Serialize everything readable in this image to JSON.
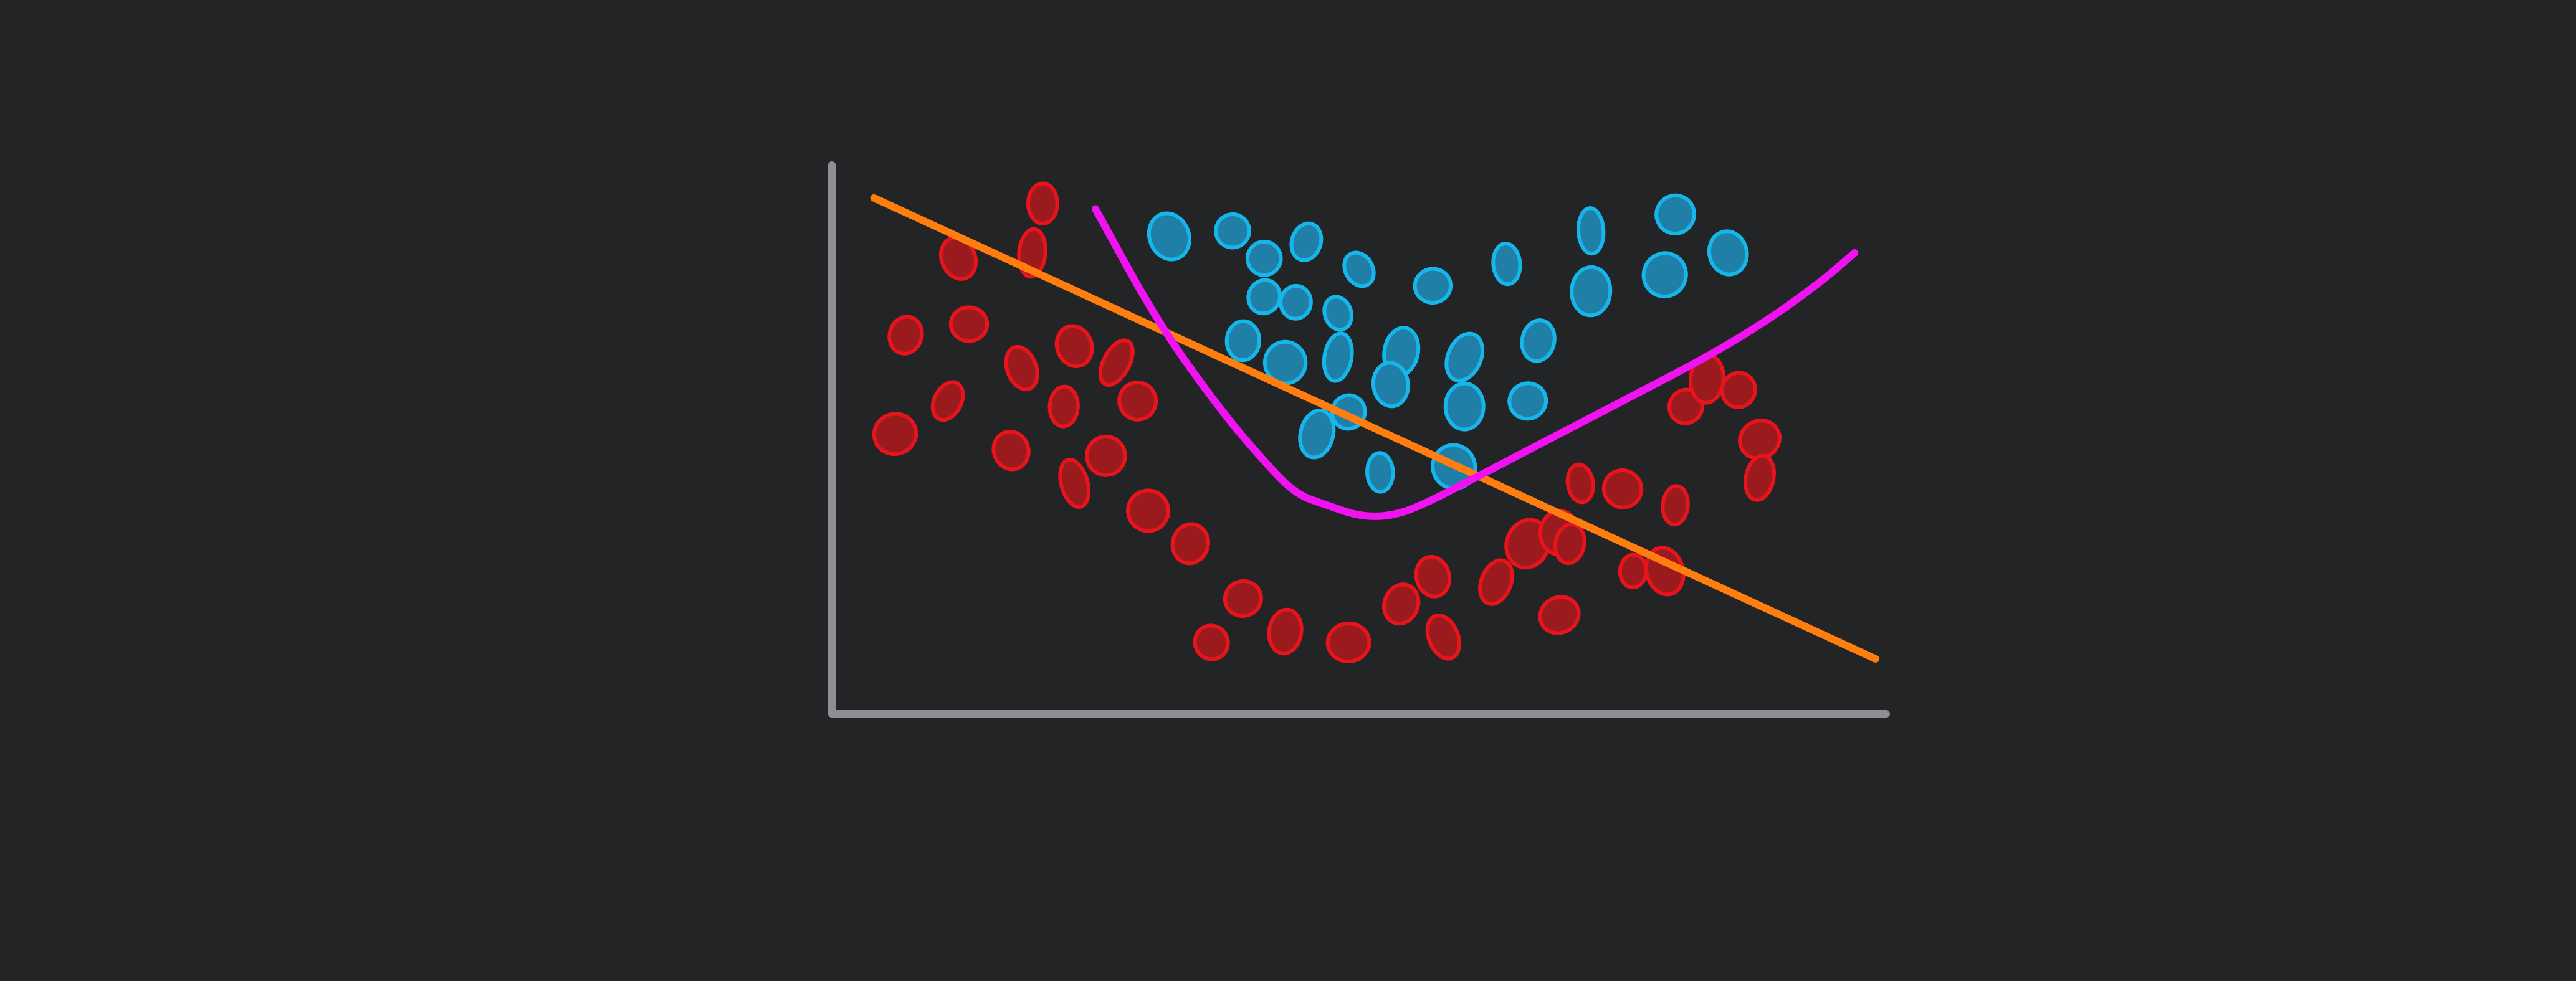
{
  "colors": {
    "background": "#232426",
    "axis": "#8e8e93",
    "red_class_stroke": "#e8141b",
    "red_class_fill": "#9a1a1e",
    "blue_class_stroke": "#17b6ea",
    "blue_class_fill": "#1f7fa6",
    "linear_boundary": "#ff7e0f",
    "curved_boundary": "#f012f0"
  },
  "chart_data": {
    "type": "scatter",
    "title": "",
    "xlabel": "",
    "ylabel": "",
    "xlim": [
      0,
      100
    ],
    "ylim": [
      0,
      100
    ],
    "grid": false,
    "legend": "none",
    "series": [
      {
        "class": "red",
        "points": [
          [
            12,
            83
          ],
          [
            20,
            93
          ],
          [
            19,
            84
          ],
          [
            7,
            69
          ],
          [
            13,
            71
          ],
          [
            18,
            63
          ],
          [
            23,
            67
          ],
          [
            27,
            64
          ],
          [
            11,
            57
          ],
          [
            22,
            56
          ],
          [
            29,
            57
          ],
          [
            6,
            51
          ],
          [
            17,
            48
          ],
          [
            26,
            47
          ],
          [
            23,
            42
          ],
          [
            30,
            37
          ],
          [
            34,
            31
          ],
          [
            39,
            21
          ],
          [
            36,
            13
          ],
          [
            43,
            15
          ],
          [
            49,
            13
          ],
          [
            54,
            20
          ],
          [
            57,
            25
          ],
          [
            58,
            14
          ],
          [
            63,
            24
          ],
          [
            66,
            31
          ],
          [
            69,
            33
          ],
          [
            71,
            42
          ],
          [
            70,
            31
          ],
          [
            75,
            41
          ],
          [
            80,
            38
          ],
          [
            81,
            56
          ],
          [
            83,
            61
          ],
          [
            86,
            59
          ],
          [
            88,
            50
          ],
          [
            88,
            43
          ],
          [
            79,
            26
          ],
          [
            69,
            18
          ],
          [
            76,
            26
          ]
        ]
      },
      {
        "class": "blue",
        "points": [
          [
            32,
            87
          ],
          [
            38,
            88
          ],
          [
            41,
            83
          ],
          [
            45,
            86
          ],
          [
            50,
            81
          ],
          [
            57,
            78
          ],
          [
            64,
            82
          ],
          [
            72,
            88
          ],
          [
            80,
            91
          ],
          [
            85,
            84
          ],
          [
            41,
            76
          ],
          [
            48,
            73
          ],
          [
            44,
            75
          ],
          [
            39,
            68
          ],
          [
            43,
            64
          ],
          [
            48,
            65
          ],
          [
            54,
            66
          ],
          [
            60,
            65
          ],
          [
            67,
            68
          ],
          [
            72,
            77
          ],
          [
            79,
            80
          ],
          [
            49,
            55
          ],
          [
            53,
            60
          ],
          [
            60,
            56
          ],
          [
            46,
            51
          ],
          [
            52,
            44
          ],
          [
            59,
            45
          ],
          [
            66,
            57
          ]
        ]
      }
    ],
    "boundaries": [
      {
        "kind": "linear",
        "from": [
          4,
          94
        ],
        "to": [
          99,
          10
        ]
      },
      {
        "kind": "curve",
        "points": [
          [
            25,
            92
          ],
          [
            31,
            71
          ],
          [
            37,
            55
          ],
          [
            41,
            46
          ],
          [
            44,
            40
          ],
          [
            47,
            38
          ],
          [
            50,
            36
          ],
          [
            53,
            36
          ],
          [
            56,
            38
          ],
          [
            61,
            43
          ],
          [
            68,
            50
          ],
          [
            75,
            57
          ],
          [
            83,
            65
          ],
          [
            89,
            72
          ],
          [
            94,
            79
          ],
          [
            97,
            84
          ]
        ]
      }
    ]
  }
}
